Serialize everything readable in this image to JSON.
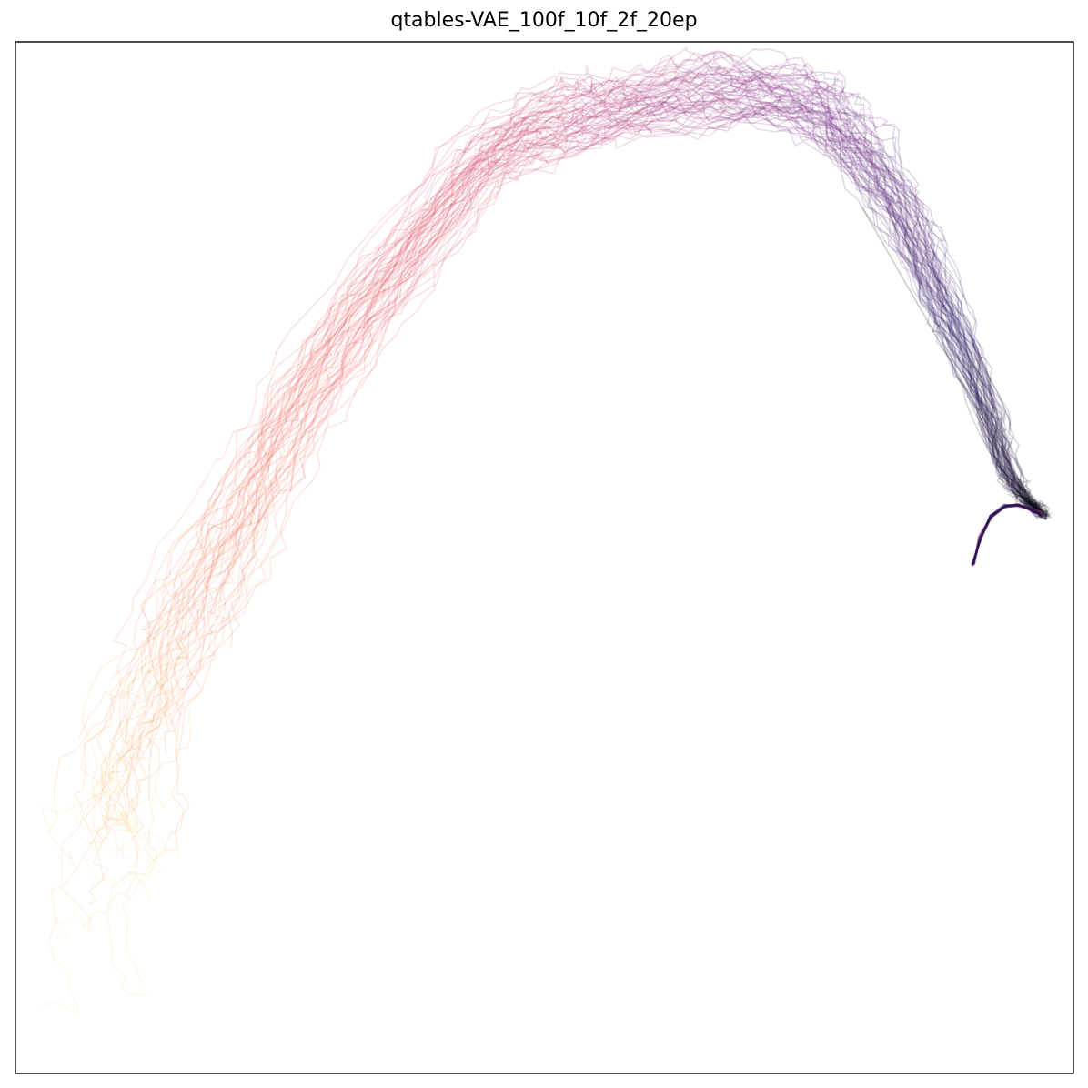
{
  "chart_data": {
    "type": "line",
    "title": "qtables-VAE_100f_10f_2f_20ep",
    "xlabel": "",
    "ylabel": "",
    "xlim": [
      0,
      1
    ],
    "ylim": [
      0,
      1
    ],
    "grid": false,
    "legend": "none",
    "axis_ticks": "none",
    "colormap": [
      "#fcffa4",
      "#fbb06b",
      "#f1605d",
      "#b73779",
      "#721f81",
      "#2c115f",
      "#000004"
    ],
    "series_count": 60,
    "trajectory_noise": 0.006,
    "line_alpha": 0.17,
    "trajectory_template": {
      "description": "arc",
      "x": [
        0.01,
        0.03,
        0.06,
        0.09,
        0.13,
        0.18,
        0.23,
        0.28,
        0.33,
        0.38,
        0.43,
        0.48,
        0.53,
        0.58,
        0.63,
        0.68,
        0.73,
        0.77,
        0.8,
        0.83,
        0.86,
        0.89,
        0.92,
        0.94,
        0.96,
        0.97
      ],
      "y": [
        0.04,
        0.15,
        0.28,
        0.4,
        0.5,
        0.59,
        0.67,
        0.74,
        0.8,
        0.85,
        0.88,
        0.91,
        0.93,
        0.94,
        0.95,
        0.955,
        0.95,
        0.93,
        0.9,
        0.85,
        0.79,
        0.72,
        0.64,
        0.58,
        0.55,
        0.545
      ]
    },
    "start_spread": {
      "x_range": [
        0.03,
        0.15
      ],
      "y_range": [
        0.03,
        0.3
      ]
    },
    "end_hook": {
      "x": [
        0.905,
        0.912,
        0.922,
        0.935,
        0.948,
        0.957,
        0.963,
        0.968,
        0.97
      ],
      "y": [
        0.493,
        0.52,
        0.54,
        0.55,
        0.551,
        0.548,
        0.545,
        0.543,
        0.54
      ]
    },
    "straight_segment": {
      "x": [
        0.8,
        0.957
      ],
      "y": [
        0.84,
        0.56
      ]
    }
  }
}
